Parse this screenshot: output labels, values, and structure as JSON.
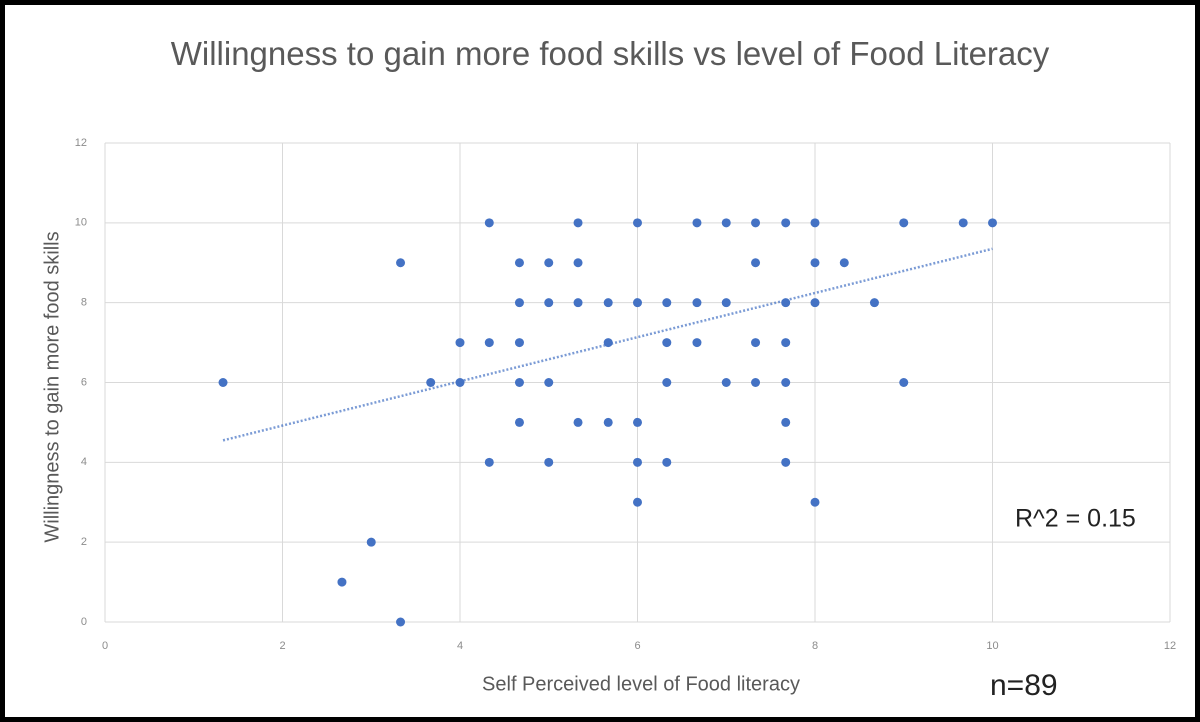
{
  "chart_data": {
    "type": "scatter",
    "title": "Willingness to gain more food skills vs level of Food Literacy",
    "xlabel": "Self Perceived level of Food literacy",
    "ylabel": "Willingness to gain more food skills",
    "color": "#4472c4",
    "x": [
      4.33,
      5.33,
      6,
      6.67,
      7,
      7.33,
      7.67,
      8,
      9,
      9.67,
      10,
      3.33,
      4.67,
      5,
      5.33,
      7.33,
      8,
      8.33,
      4.67,
      5,
      5.33,
      5.67,
      6,
      6.33,
      6.67,
      7,
      7.67,
      8,
      8.67,
      4,
      4.33,
      4.67,
      5.67,
      6.33,
      6.67,
      7.33,
      7.67,
      1.33,
      3.67,
      4,
      4.67,
      5,
      6.33,
      7,
      7.33,
      7.67,
      9,
      4.67,
      5.33,
      5.67,
      6,
      7.67,
      4.33,
      5,
      6,
      6.33,
      7.67,
      6,
      8,
      3,
      2.67,
      3.33
    ],
    "y": [
      10,
      10,
      10,
      10,
      10,
      10,
      10,
      10,
      10,
      10,
      10,
      9,
      9,
      9,
      9,
      9,
      9,
      9,
      8,
      8,
      8,
      8,
      8,
      8,
      8,
      8,
      8,
      8,
      8,
      7,
      7,
      7,
      7,
      7,
      7,
      7,
      7,
      6,
      6,
      6,
      6,
      6,
      6,
      6,
      6,
      6,
      6,
      5,
      5,
      5,
      5,
      5,
      4,
      4,
      4,
      4,
      4,
      3,
      3,
      2,
      1,
      0
    ],
    "trendline": {
      "x": [
        1.33,
        10
      ],
      "y": [
        4.55,
        9.35
      ]
    },
    "annotations": [
      "R^2 = 0.15",
      "n=89"
    ],
    "xlim": [
      0,
      12
    ],
    "xticks": [
      0,
      2,
      4,
      6,
      8,
      10,
      12
    ],
    "ylim": [
      0,
      12
    ],
    "yticks": [
      0,
      2,
      4,
      6,
      8,
      10,
      12
    ],
    "grid": true
  }
}
